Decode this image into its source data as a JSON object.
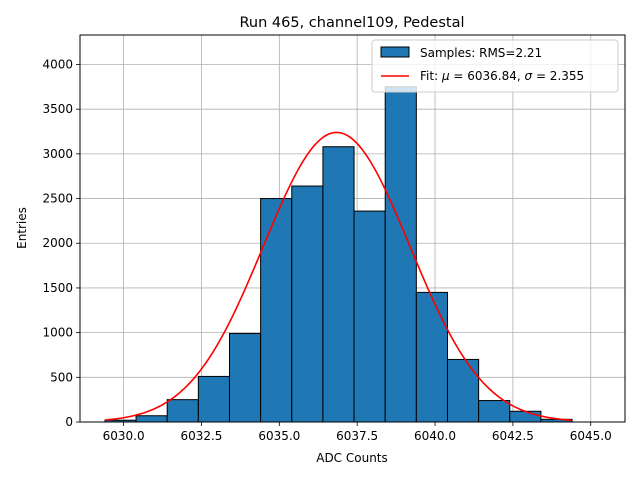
{
  "chart_data": {
    "type": "bar",
    "title": "Run 465, channel109, Pedestal",
    "xlabel": "ADC Counts",
    "ylabel": "Entries",
    "xlim": [
      6028.6,
      6046.1
    ],
    "ylim": [
      0,
      4330
    ],
    "xticks": [
      6030.0,
      6032.5,
      6035.0,
      6037.5,
      6040.0,
      6042.5,
      6045.0
    ],
    "xtick_labels": [
      "6030.0",
      "6032.5",
      "6035.0",
      "6037.5",
      "6040.0",
      "6042.5",
      "6045.0"
    ],
    "yticks": [
      0,
      500,
      1000,
      1500,
      2000,
      2500,
      3000,
      3500,
      4000
    ],
    "ytick_labels": [
      "0",
      "500",
      "1000",
      "1500",
      "2000",
      "2500",
      "3000",
      "3500",
      "4000"
    ],
    "grid": true,
    "legend_position": "top-right",
    "histogram": {
      "name": "Samples: RMS=2.21",
      "color": "#1f77b4",
      "edge_color": "#000000",
      "bin_edges": [
        6029.4,
        6030.4,
        6031.4,
        6032.4,
        6033.4,
        6034.4,
        6035.4,
        6036.4,
        6037.4,
        6038.4,
        6039.4,
        6040.4,
        6041.4,
        6042.4,
        6043.4,
        6044.4
      ],
      "counts": [
        20,
        70,
        250,
        510,
        990,
        2500,
        2640,
        3080,
        2360,
        3750,
        1450,
        700,
        240,
        120,
        30
      ]
    },
    "fit": {
      "name_parts": [
        "Fit: ",
        "μ",
        " = 6036.84, ",
        "σ",
        " = 2.355"
      ],
      "color": "#ff0000",
      "mu": 6036.84,
      "sigma": 2.355,
      "amplitude": 3240,
      "x_range": [
        6029.4,
        6044.4
      ]
    }
  }
}
